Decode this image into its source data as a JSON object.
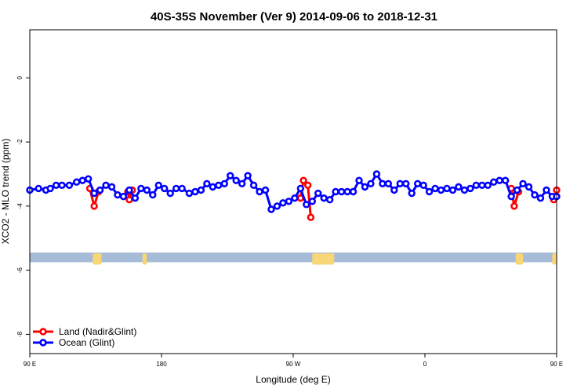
{
  "chart_data": {
    "type": "line",
    "title": "40S-35S November (Ver 9)   2014-09-06 to 2018-12-31",
    "xlabel": "Longitude (deg E)",
    "ylabel": "XCO2 - MLO trend (ppm)",
    "xlim": [
      90,
      450
    ],
    "ylim": [
      -8.6,
      1.5
    ],
    "xticks": [
      {
        "value": 90,
        "label": "90 E"
      },
      {
        "value": 180,
        "label": "180"
      },
      {
        "value": 270,
        "label": "90 W"
      },
      {
        "value": 360,
        "label": "0"
      },
      {
        "value": 450,
        "label": "90 E"
      },
      {
        "value": 540,
        "label": "180"
      }
    ],
    "yticks": [
      {
        "value": 0,
        "label": "0"
      },
      {
        "value": -2,
        "label": "-2"
      },
      {
        "value": -4,
        "label": "-4"
      },
      {
        "value": -6,
        "label": "-6"
      },
      {
        "value": -8,
        "label": "-8"
      }
    ],
    "grid": false,
    "legend_position": "bottom-left",
    "land_band": {
      "y_top": -5.45,
      "y_bottom": -5.75,
      "ocean_color": "#a5bbd8",
      "land_color": "#f8d575"
    },
    "land_ranges": [
      [
        133,
        139
      ],
      [
        167,
        170
      ],
      [
        283,
        298
      ],
      [
        422,
        427
      ],
      [
        447,
        450
      ]
    ],
    "series": [
      {
        "name": "Land (Nadir&Glint)",
        "color": "#ff0000",
        "segments": [
          [
            [
              131,
              -3.45
            ],
            [
              134,
              -4.0
            ],
            [
              137,
              -3.55
            ]
          ],
          [
            [
              157,
              -3.55
            ],
            [
              158,
              -3.8
            ],
            [
              160,
              -3.5
            ]
          ],
          [
            [
              275,
              -3.75
            ],
            [
              277,
              -3.2
            ],
            [
              280,
              -3.35
            ],
            [
              282,
              -4.35
            ]
          ],
          [
            [
              419,
              -3.45
            ],
            [
              421,
              -4.0
            ],
            [
              424,
              -3.55
            ]
          ],
          [
            [
              448,
              -3.8
            ],
            [
              450,
              -3.5
            ]
          ]
        ]
      },
      {
        "name": "Ocean (Glint)",
        "color": "#0000ff",
        "x": [
          90,
          96,
          101,
          104,
          108,
          112,
          117,
          122,
          126,
          130,
          134,
          138,
          142,
          146,
          150,
          154,
          158,
          162,
          166,
          170,
          174,
          178,
          182,
          186,
          190,
          194,
          199,
          203,
          207,
          211,
          215,
          219,
          223,
          227,
          231,
          235,
          239,
          243,
          247,
          251,
          255,
          259,
          263,
          267,
          271,
          275,
          279,
          283,
          287,
          291,
          295,
          299,
          303,
          307,
          311,
          315,
          319,
          323,
          327,
          331,
          335,
          339,
          343,
          347,
          351,
          355,
          359,
          363,
          367,
          371,
          375,
          379,
          383,
          387,
          391,
          395,
          399,
          403,
          407,
          411,
          415,
          419,
          423,
          427,
          431,
          435,
          439,
          443,
          447,
          450
        ],
        "y": [
          -3.5,
          -3.45,
          -3.5,
          -3.45,
          -3.35,
          -3.35,
          -3.35,
          -3.25,
          -3.2,
          -3.15,
          -3.6,
          -3.5,
          -3.35,
          -3.4,
          -3.65,
          -3.7,
          -3.5,
          -3.75,
          -3.45,
          -3.5,
          -3.65,
          -3.35,
          -3.45,
          -3.6,
          -3.45,
          -3.45,
          -3.6,
          -3.55,
          -3.5,
          -3.3,
          -3.4,
          -3.35,
          -3.3,
          -3.05,
          -3.2,
          -3.3,
          -3.05,
          -3.35,
          -3.55,
          -3.5,
          -4.1,
          -4.0,
          -3.9,
          -3.85,
          -3.75,
          -3.45,
          -3.95,
          -3.85,
          -3.6,
          -3.75,
          -3.8,
          -3.55,
          -3.55,
          -3.55,
          -3.55,
          -3.2,
          -3.4,
          -3.3,
          -3.0,
          -3.3,
          -3.3,
          -3.5,
          -3.3,
          -3.3,
          -3.6,
          -3.3,
          -3.35,
          -3.55,
          -3.45,
          -3.5,
          -3.45,
          -3.5,
          -3.4,
          -3.5,
          -3.45,
          -3.35,
          -3.35,
          -3.35,
          -3.25,
          -3.2,
          -3.2,
          -3.7,
          -3.5,
          -3.3,
          -3.4,
          -3.65,
          -3.75,
          -3.5,
          -3.7,
          -3.7
        ]
      }
    ]
  }
}
